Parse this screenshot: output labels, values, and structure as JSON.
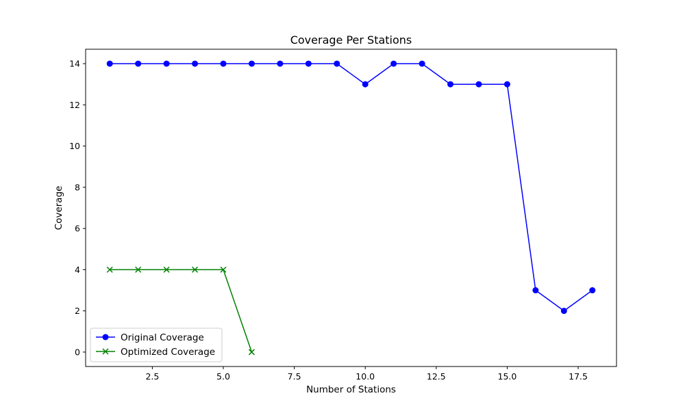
{
  "chart_data": {
    "type": "line",
    "title": "Coverage Per Stations",
    "xlabel": "Number of Stations",
    "ylabel": "Coverage",
    "xlim": [
      0.15,
      18.85
    ],
    "ylim": [
      -0.7,
      14.7
    ],
    "xticks": [
      2.5,
      5.0,
      7.5,
      10.0,
      12.5,
      15.0,
      17.5
    ],
    "xtick_labels": [
      "2.5",
      "5.0",
      "7.5",
      "10.0",
      "12.5",
      "15.0",
      "17.5"
    ],
    "yticks": [
      0,
      2,
      4,
      6,
      8,
      10,
      12,
      14
    ],
    "ytick_labels": [
      "0",
      "2",
      "4",
      "6",
      "8",
      "10",
      "12",
      "14"
    ],
    "grid": false,
    "legend_position": "lower-left",
    "series": [
      {
        "name": "Original Coverage",
        "color": "#0000ff",
        "marker": "circle",
        "x": [
          1,
          2,
          3,
          4,
          5,
          6,
          7,
          8,
          9,
          10,
          11,
          12,
          13,
          14,
          15,
          16,
          17,
          18
        ],
        "y": [
          14,
          14,
          14,
          14,
          14,
          14,
          14,
          14,
          14,
          13,
          14,
          14,
          13,
          13,
          13,
          3,
          2,
          3
        ]
      },
      {
        "name": "Optimized Coverage",
        "color": "#008000",
        "marker": "x",
        "x": [
          1,
          2,
          3,
          4,
          5,
          6
        ],
        "y": [
          4,
          4,
          4,
          4,
          4,
          0
        ]
      }
    ]
  }
}
